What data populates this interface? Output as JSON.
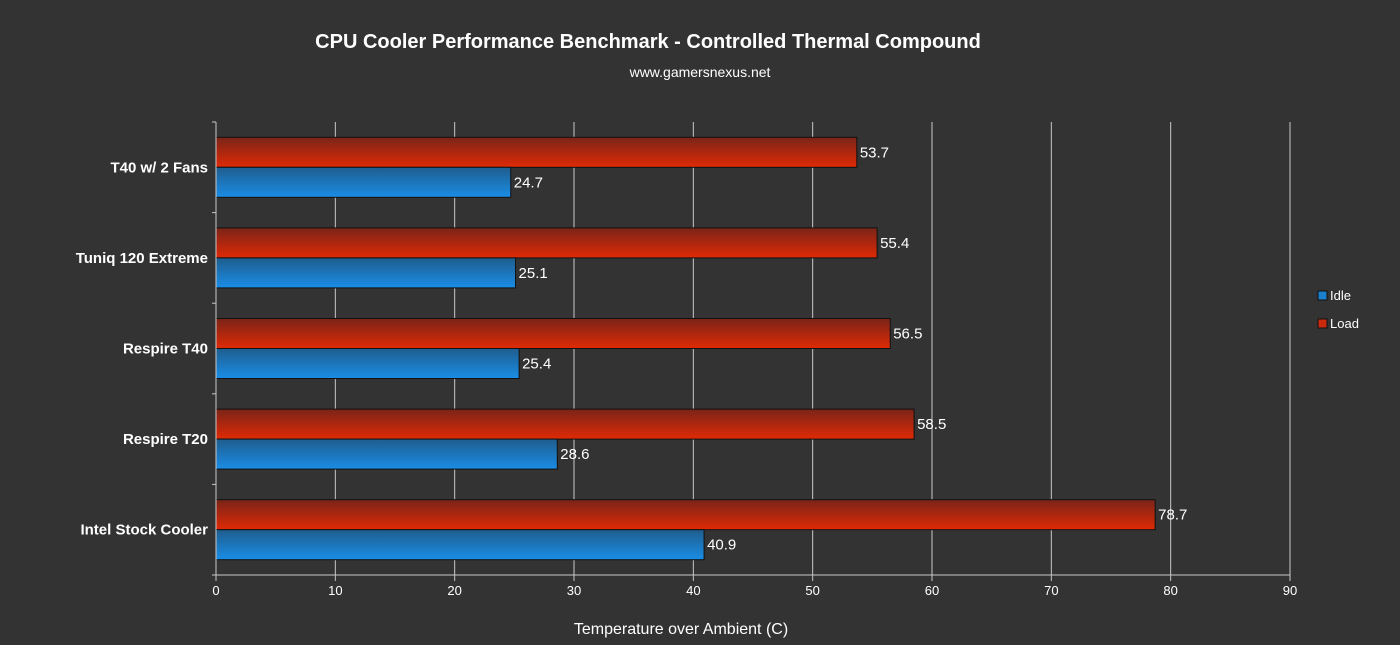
{
  "chart_data": {
    "type": "bar",
    "orientation": "horizontal",
    "title": "CPU Cooler Performance Benchmark - Controlled Thermal Compound",
    "subtitle": "www.gamersnexus.net",
    "xlabel": "Temperature over Ambient (C)",
    "ylabel": "",
    "xlim": [
      0,
      90
    ],
    "xticks": [
      "0",
      "10",
      "20",
      "30",
      "40",
      "50",
      "60",
      "70",
      "80",
      "90"
    ],
    "grid": true,
    "legend_position": "right",
    "categories": [
      "T40 w/ 2 Fans",
      "Tuniq 120 Extreme",
      "Respire T40",
      "Respire T20",
      "Intel Stock Cooler"
    ],
    "series": [
      {
        "name": "Load",
        "color": "#cc2a0e",
        "values": [
          53.7,
          55.4,
          56.5,
          58.5,
          78.7
        ]
      },
      {
        "name": "Idle",
        "color": "#1a7fcc",
        "values": [
          24.7,
          25.1,
          25.4,
          28.6,
          40.9
        ]
      }
    ],
    "legend": [
      "Idle",
      "Load"
    ]
  }
}
